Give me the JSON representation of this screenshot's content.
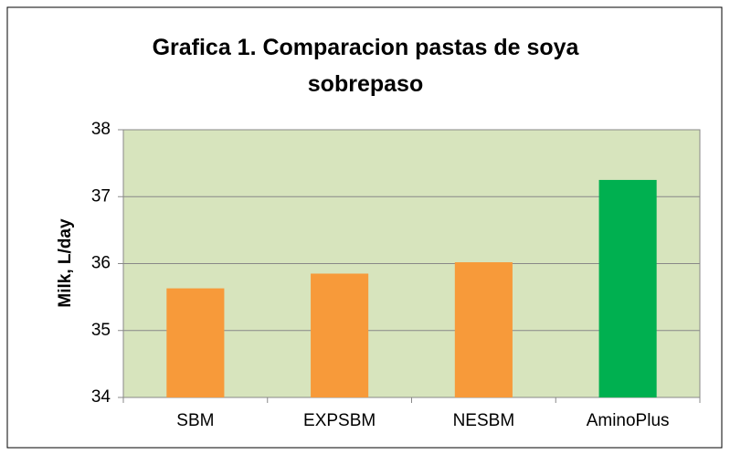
{
  "chart_data": {
    "type": "bar",
    "title": "Grafica 1. Comparacion pastas de soya sobrepaso",
    "y_label": "Milk, L/day",
    "categories": [
      "SBM",
      "EXPSBM",
      "NESBM",
      "AminoPlus"
    ],
    "values": [
      35.63,
      35.85,
      36.02,
      37.25
    ],
    "colors": [
      "#f79a3a",
      "#f79a3a",
      "#f79a3a",
      "#00b050"
    ],
    "plot_background": "#d7e4bd",
    "ylim": [
      34,
      38
    ],
    "yticks": [
      34,
      35,
      36,
      37,
      38
    ],
    "grid": true
  }
}
